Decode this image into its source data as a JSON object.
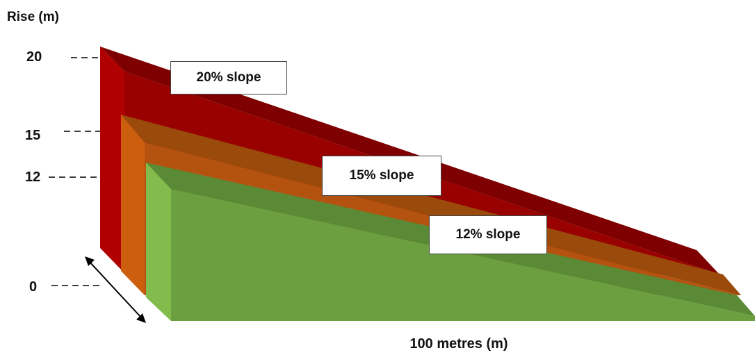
{
  "chart_data": {
    "type": "area",
    "ylabel": "Rise (m)",
    "xlabel": "100 metres (m)",
    "y_ticks": [
      "20",
      "15",
      "12",
      "0"
    ],
    "series": [
      {
        "name": "20% slope",
        "rise_m": 20,
        "run_m": 100,
        "color": "#a30000"
      },
      {
        "name": "15% slope",
        "rise_m": 15,
        "run_m": 100,
        "color": "#c85a0a"
      },
      {
        "name": "12% slope",
        "rise_m": 12,
        "run_m": 100,
        "color": "#6fa043"
      }
    ]
  }
}
